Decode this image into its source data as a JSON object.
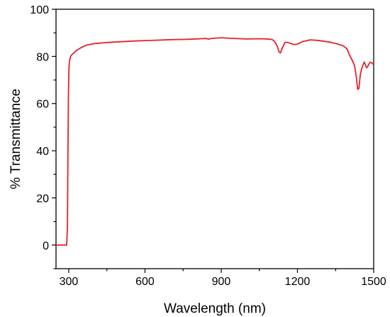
{
  "chart_data": {
    "type": "line",
    "xlabel": "Wavelength (nm)",
    "ylabel": "% Transmittance",
    "xlim": [
      250,
      1500
    ],
    "ylim": [
      -10,
      100
    ],
    "x_ticks": [
      300,
      600,
      900,
      1200,
      1500
    ],
    "x_tick_labels": [
      "300",
      "600",
      "900",
      "1200",
      "1500"
    ],
    "x_minor_ticks": [
      450,
      750,
      1050,
      1350
    ],
    "y_ticks": [
      0,
      20,
      40,
      60,
      80,
      100
    ],
    "y_tick_labels": [
      "0",
      "20",
      "40",
      "60",
      "80",
      "100"
    ],
    "y_minor_ticks": [
      -10,
      10,
      30,
      50,
      70,
      90
    ],
    "grid": false,
    "legend": "none",
    "series": [
      {
        "color": "#e8202a",
        "x": [
          250,
          260,
          270,
          280,
          288,
          292,
          295,
          297,
          299,
          301,
          303,
          306,
          310,
          320,
          330,
          350,
          370,
          400,
          450,
          500,
          550,
          600,
          650,
          700,
          750,
          800,
          840,
          850,
          860,
          900,
          950,
          1000,
          1050,
          1080,
          1100,
          1110,
          1120,
          1128,
          1133,
          1140,
          1150,
          1160,
          1175,
          1190,
          1200,
          1220,
          1250,
          1280,
          1300,
          1330,
          1360,
          1380,
          1395,
          1405,
          1415,
          1425,
          1432,
          1437,
          1442,
          1447,
          1452,
          1458,
          1463,
          1468,
          1472,
          1476,
          1480,
          1486,
          1492,
          1497,
          1500
        ],
        "y": [
          0,
          0,
          0,
          0,
          0,
          0,
          8,
          40,
          65,
          75,
          78,
          79.5,
          80.5,
          81.5,
          82.5,
          83.8,
          84.8,
          85.4,
          85.9,
          86.2,
          86.5,
          86.7,
          86.9,
          87.1,
          87.2,
          87.4,
          87.6,
          87.3,
          87.6,
          87.9,
          87.6,
          87.4,
          87.5,
          87.4,
          87.2,
          86.3,
          84.5,
          81.8,
          81.5,
          83.5,
          85.8,
          86.0,
          85.4,
          85.0,
          85.2,
          86.3,
          87.0,
          86.8,
          86.5,
          86.0,
          85.2,
          84.5,
          83.2,
          80.5,
          78.5,
          76.0,
          71.0,
          66.0,
          66.5,
          72.0,
          74.5,
          76.5,
          77.6,
          76.2,
          75.2,
          75.6,
          76.5,
          77.5,
          77.3,
          76.8,
          77.0
        ]
      }
    ]
  }
}
